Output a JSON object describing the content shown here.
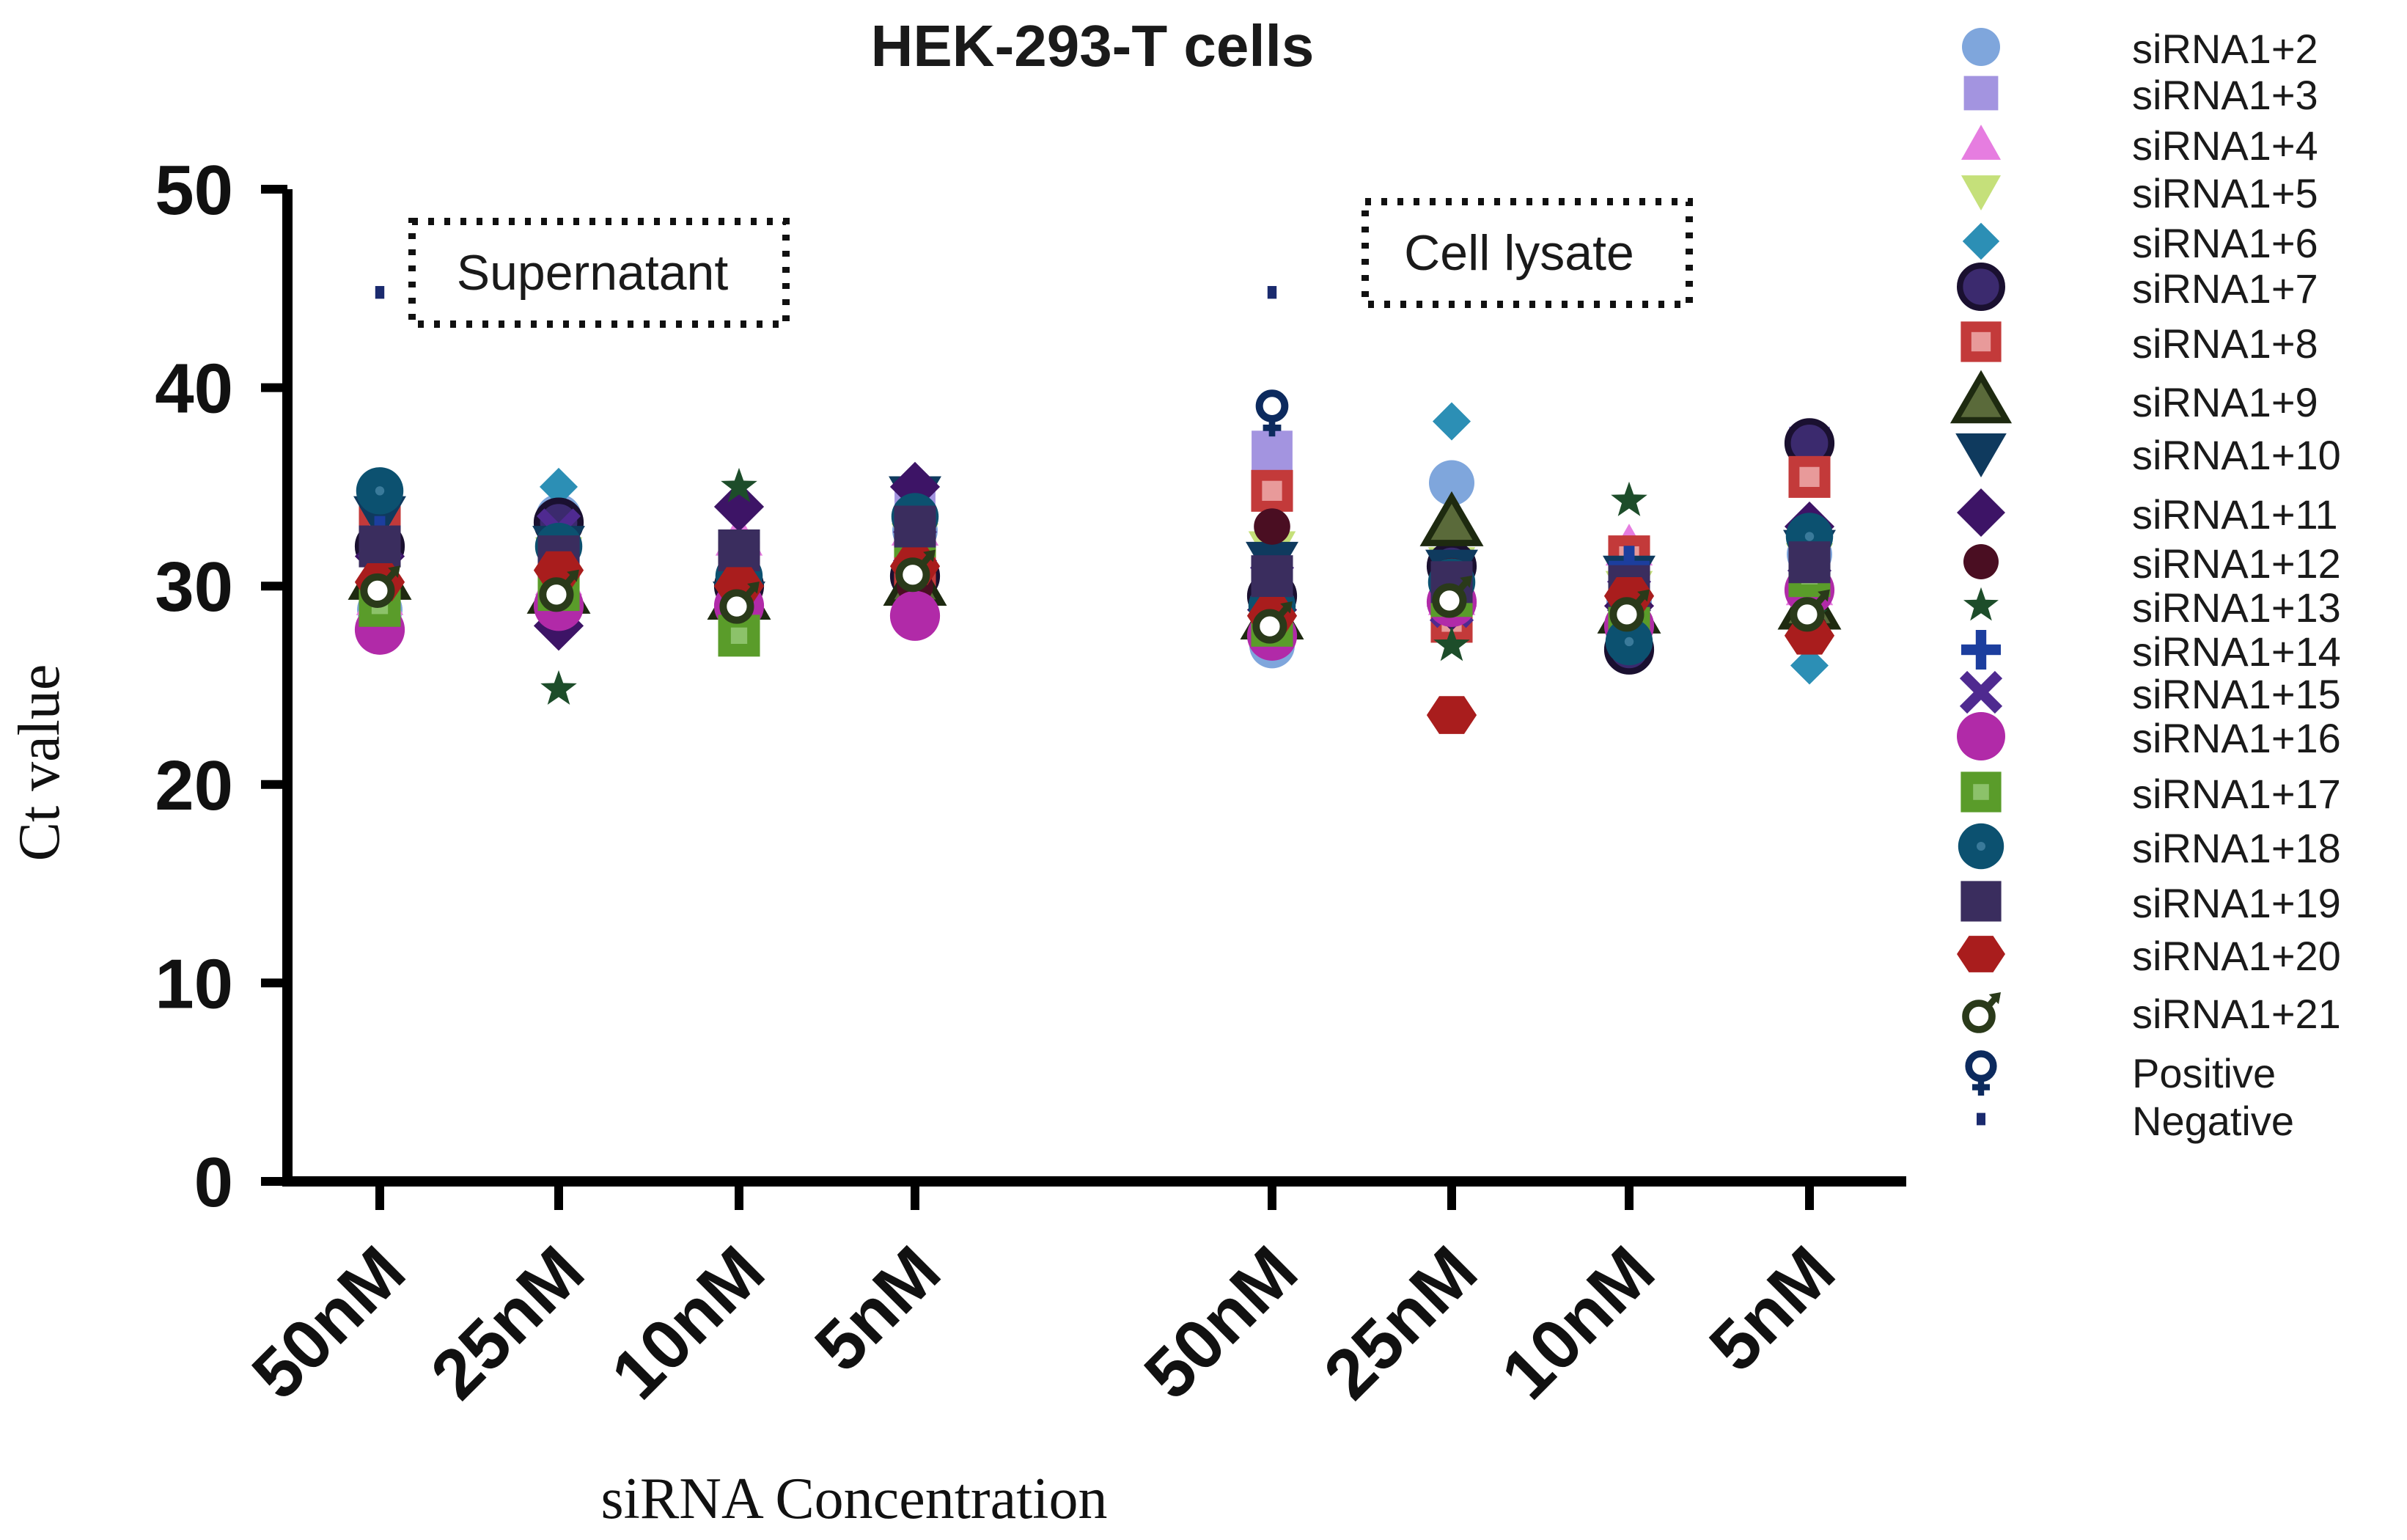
{
  "chart_data": {
    "type": "scatter",
    "title": "HEK-293-T cells",
    "ylabel": "Ct value",
    "xlabel": "siRNA Concentration",
    "ylim": [
      0,
      50
    ],
    "yticks": [
      0,
      10,
      20,
      30,
      40,
      50
    ],
    "categories": [
      "50nM",
      "25nM",
      "10nM",
      "5nM",
      "50nM",
      "25nM",
      "10nM",
      "5nM"
    ],
    "groups": [
      {
        "name": "Supernatant",
        "categories": [
          0,
          1,
          2,
          3
        ]
      },
      {
        "name": "Cell lysate",
        "categories": [
          4,
          5,
          6,
          7
        ]
      }
    ],
    "annotations": [
      "Supernatant",
      "Cell lysate"
    ],
    "series": [
      {
        "name": "siRNA1+2",
        "marker": "circle",
        "color": "#7fa6dc",
        "values": [
          28.8,
          33.5,
          30.2,
          32.8,
          27.0,
          35.2,
          29.2,
          31.6
        ]
      },
      {
        "name": "siRNA1+3",
        "marker": "square",
        "color": "#a394e0",
        "values": [
          33.8,
          32.5,
          31.0,
          34.0,
          36.8,
          29.8,
          30.2,
          37.0
        ]
      },
      {
        "name": "siRNA1+4",
        "marker": "triangle",
        "color": "#e67de0",
        "values": [
          29.5,
          30.5,
          32.5,
          33.0,
          30.8,
          29.5,
          32.0,
          30.0
        ]
      },
      {
        "name": "siRNA1+5",
        "marker": "triangle-down",
        "color": "#c5e07a",
        "values": [
          31.0,
          31.5,
          28.8,
          32.2,
          31.8,
          31.0,
          29.8,
          31.2
        ]
      },
      {
        "name": "siRNA1+6",
        "marker": "diamond",
        "color": "#2c8fb5",
        "values": [
          33.0,
          35.0,
          30.5,
          31.2,
          30.0,
          38.3,
          28.2,
          26.0
        ]
      },
      {
        "name": "siRNA1+7",
        "marker": "circle-ring",
        "color": "#3b2a6e",
        "values": [
          32.0,
          33.2,
          30.0,
          30.5,
          29.5,
          31.0,
          26.8,
          37.2
        ]
      },
      {
        "name": "siRNA1+8",
        "marker": "square-ring",
        "color": "#c33a3a",
        "values": [
          33.0,
          30.5,
          31.2,
          30.8,
          34.8,
          28.2,
          31.5,
          35.5
        ]
      },
      {
        "name": "siRNA1+9",
        "marker": "triangle-ring",
        "color": "#3b4a22",
        "values": [
          30.5,
          29.8,
          29.5,
          30.2,
          28.5,
          33.2,
          28.8,
          29.0
        ]
      },
      {
        "name": "siRNA1+10",
        "marker": "triangle-down-filled",
        "color": "#0f3a5e",
        "values": [
          33.5,
          32.0,
          29.2,
          34.5,
          31.2,
          30.8,
          30.5,
          31.8
        ]
      },
      {
        "name": "siRNA1+11",
        "marker": "diamond-filled",
        "color": "#3d1466",
        "values": [
          31.5,
          28.0,
          34.0,
          35.0,
          28.8,
          29.0,
          29.0,
          33.0
        ]
      },
      {
        "name": "siRNA1+12",
        "marker": "circle-small",
        "color": "#4a0e22",
        "values": [
          30.0,
          29.5,
          29.0,
          30.0,
          33.0,
          30.5,
          28.5,
          27.8
        ]
      },
      {
        "name": "siRNA1+13",
        "marker": "star",
        "color": "#1d4d2a",
        "values": [
          31.2,
          24.8,
          35.0,
          31.5,
          28.8,
          27.0,
          34.3,
          28.5
        ]
      },
      {
        "name": "siRNA1+14",
        "marker": "plus",
        "color": "#1c3e9e",
        "values": [
          32.5,
          31.8,
          30.8,
          33.5,
          29.5,
          30.0,
          31.0,
          30.8
        ]
      },
      {
        "name": "siRNA1+15",
        "marker": "x",
        "color": "#4f2a90",
        "values": [
          30.8,
          32.8,
          29.8,
          32.0,
          30.2,
          29.0,
          29.5,
          31.5
        ]
      },
      {
        "name": "siRNA1+16",
        "marker": "circle-big",
        "color": "#b12aa8",
        "values": [
          27.8,
          29.0,
          29.0,
          28.5,
          27.5,
          29.2,
          28.0,
          29.8
        ]
      },
      {
        "name": "siRNA1+17",
        "marker": "square-dot",
        "color": "#5a9c2a",
        "values": [
          29.0,
          29.8,
          27.5,
          32.5,
          28.0,
          29.5,
          28.2,
          30.5
        ]
      },
      {
        "name": "siRNA1+18",
        "marker": "circle-dot",
        "color": "#0c5170",
        "values": [
          34.8,
          32.0,
          30.5,
          33.5,
          29.0,
          30.2,
          27.2,
          32.5
        ]
      },
      {
        "name": "siRNA1+19",
        "marker": "square-dark",
        "color": "#3a2d5e",
        "values": [
          32.0,
          31.5,
          31.8,
          33.0,
          30.5,
          30.2,
          30.0,
          31.2
        ]
      },
      {
        "name": "siRNA1+20",
        "marker": "hexagon",
        "color": "#a91d1d",
        "values": [
          30.2,
          30.8,
          30.0,
          31.0,
          28.5,
          23.5,
          29.5,
          27.5
        ]
      },
      {
        "name": "siRNA1+21",
        "marker": "male-ring",
        "color": "#2a3a1a",
        "values": [
          30.0,
          29.8,
          29.2,
          30.8,
          28.2,
          29.5,
          28.8,
          28.8
        ]
      },
      {
        "name": "Positive",
        "marker": "ring-cross",
        "color": "#0c2a5e",
        "values": [
          null,
          null,
          null,
          null,
          38.8,
          null,
          null,
          null
        ]
      },
      {
        "name": "Negative",
        "marker": "dash",
        "color": "#1a2a6e",
        "values": [
          44.8,
          null,
          null,
          null,
          44.8,
          null,
          null,
          null
        ]
      }
    ]
  }
}
